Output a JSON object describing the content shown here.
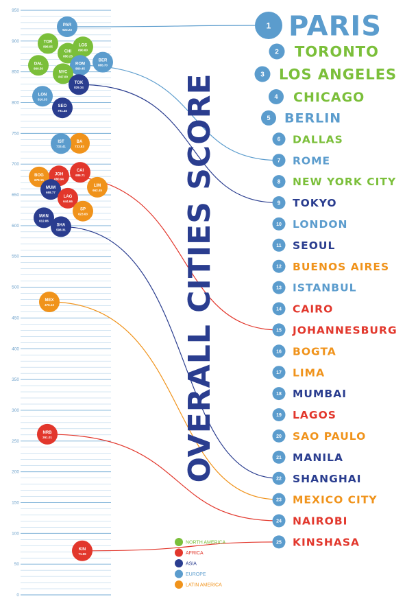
{
  "colors": {
    "north_america": "#7bbf3a",
    "africa": "#e2372c",
    "asia": "#2a3d8f",
    "europe": "#5b9ccd",
    "latin_america": "#f0931b",
    "grid": "#5b9ccd",
    "axis_text": "#6a9fc9"
  },
  "chart_data": {
    "type": "scatter",
    "title": "OVERALL CITIES SCORE",
    "ylim": [
      0,
      950
    ],
    "y_ticks": [
      "0",
      "50",
      "100",
      "150",
      "200",
      "250",
      "300",
      "350",
      "400",
      "450",
      "500",
      "550",
      "600",
      "650",
      "700",
      "750",
      "800",
      "850",
      "900",
      "950"
    ],
    "legend": [
      {
        "label": "NORTH AMERICA",
        "color_key": "north_america"
      },
      {
        "label": "AFRICA",
        "color_key": "africa"
      },
      {
        "label": "ASIA",
        "color_key": "asia"
      },
      {
        "label": "EUROPE",
        "color_key": "europe"
      },
      {
        "label": "LATIN AMERICA",
        "color_key": "latin_america"
      }
    ],
    "cities": [
      {
        "rank": "1",
        "name": "PARIS",
        "abbr": "PAR",
        "score": 923.23,
        "score_label": "923.23",
        "region": "europe"
      },
      {
        "rank": "2",
        "name": "TORONTO",
        "abbr": "TOR",
        "score": 896.05,
        "score_label": "896.05",
        "region": "north_america"
      },
      {
        "rank": "3",
        "name": "LOS ANGELES",
        "abbr": "LOS",
        "score": 890.6,
        "score_label": "890.60",
        "region": "north_america"
      },
      {
        "rank": "4",
        "name": "CHICAGO",
        "abbr": "CHI",
        "score": 880.25,
        "score_label": "880.25",
        "region": "north_america"
      },
      {
        "rank": "5",
        "name": "BERLIN",
        "abbr": "BER",
        "score": 865.7,
        "score_label": "865.70",
        "region": "europe"
      },
      {
        "rank": "6",
        "name": "DALLAS",
        "abbr": "DAL",
        "score": 860.5,
        "score_label": "860.50",
        "region": "north_america"
      },
      {
        "rank": "7",
        "name": "ROME",
        "abbr": "ROM",
        "score": 860.45,
        "score_label": "860.45",
        "region": "europe"
      },
      {
        "rank": "8",
        "name": "NEW YORK CITY",
        "abbr": "NYC",
        "score": 847.0,
        "score_label": "847.00",
        "region": "north_america"
      },
      {
        "rank": "9",
        "name": "TOKYO",
        "abbr": "TOK",
        "score": 829.34,
        "score_label": "829.34",
        "region": "asia"
      },
      {
        "rank": "10",
        "name": "LONDON",
        "abbr": "LON",
        "score": 810.33,
        "score_label": "810.33",
        "region": "europe"
      },
      {
        "rank": "11",
        "name": "SEOUL",
        "abbr": "SEO",
        "score": 791.45,
        "score_label": "791.45",
        "region": "asia"
      },
      {
        "rank": "12",
        "name": "BUENOS AIRES",
        "abbr": "BA",
        "score": 733.83,
        "score_label": "733.83",
        "region": "latin_america"
      },
      {
        "rank": "13",
        "name": "ISTANBUL",
        "abbr": "IST",
        "score": 733.41,
        "score_label": "733.41",
        "region": "europe"
      },
      {
        "rank": "14",
        "name": "CAIRO",
        "abbr": "CAI",
        "score": 686.71,
        "score_label": "686.71",
        "region": "africa"
      },
      {
        "rank": "15",
        "name": "JOHANNESBURG",
        "abbr": "JOH",
        "score": 680.94,
        "score_label": "680.94",
        "region": "africa"
      },
      {
        "rank": "16",
        "name": "BOGTA",
        "abbr": "BOG",
        "score": 679.15,
        "score_label": "679.15",
        "region": "latin_america"
      },
      {
        "rank": "17",
        "name": "LIMA",
        "abbr": "LIM",
        "score": 662.45,
        "score_label": "662.45",
        "region": "latin_america"
      },
      {
        "rank": "18",
        "name": "MUMBAI",
        "abbr": "MUM",
        "score": 658.77,
        "score_label": "658.77",
        "region": "asia"
      },
      {
        "rank": "19",
        "name": "LAGOS",
        "abbr": "LAG",
        "score": 644.66,
        "score_label": "644.66",
        "region": "africa"
      },
      {
        "rank": "20",
        "name": "SAO PAULO",
        "abbr": "SP",
        "score": 623.63,
        "score_label": "623.63",
        "region": "latin_america"
      },
      {
        "rank": "21",
        "name": "MANILA",
        "abbr": "MAN",
        "score": 612.86,
        "score_label": "612.86",
        "region": "asia"
      },
      {
        "rank": "22",
        "name": "SHANGHAI",
        "abbr": "SHA",
        "score": 598.31,
        "score_label": "598.31",
        "region": "asia"
      },
      {
        "rank": "23",
        "name": "MEXICO CITY",
        "abbr": "MEX",
        "score": 476.13,
        "score_label": "476.13",
        "region": "latin_america"
      },
      {
        "rank": "24",
        "name": "NAIROBI",
        "abbr": "NRB",
        "score": 261.01,
        "score_label": "261.01",
        "region": "africa"
      },
      {
        "rank": "25",
        "name": "KINSHASA",
        "abbr": "KIN",
        "score": 71.59,
        "score_label": "71.59",
        "region": "africa"
      }
    ],
    "connector_ranks": [
      "1",
      "7",
      "9",
      "15",
      "22",
      "23",
      "24",
      "25"
    ]
  }
}
